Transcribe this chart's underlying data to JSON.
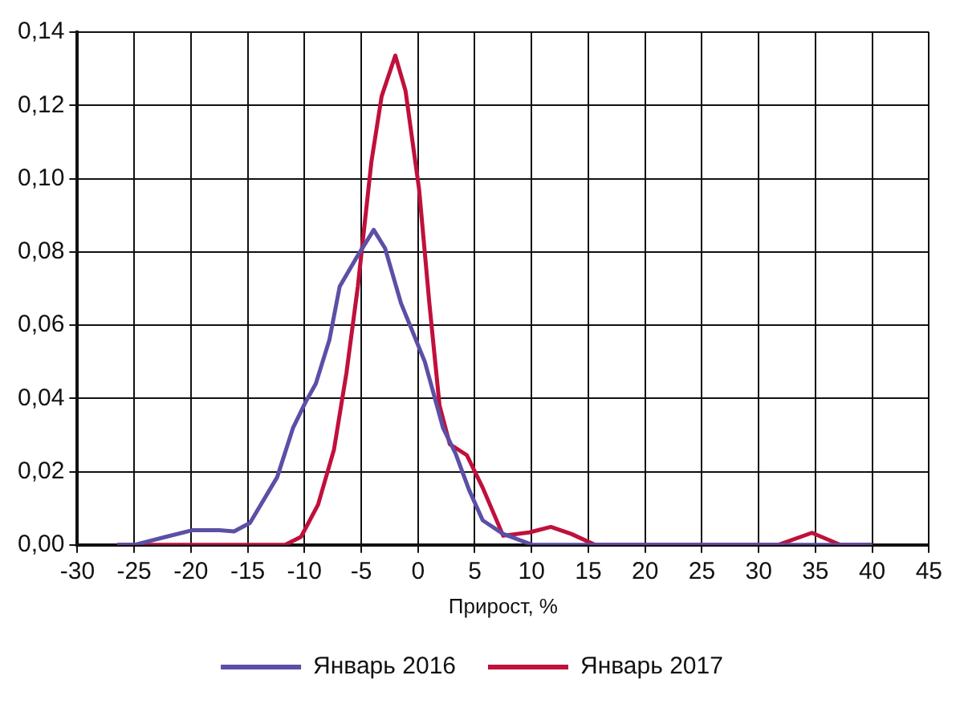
{
  "chart_data": {
    "type": "line",
    "xlabel": "Прирост, %",
    "xlim": [
      -30,
      45
    ],
    "xticks": [
      -30,
      -25,
      -20,
      -15,
      -10,
      -5,
      0,
      5,
      10,
      15,
      20,
      25,
      30,
      35,
      40,
      45
    ],
    "ylim": [
      0,
      0.14
    ],
    "yticks": [
      {
        "value": 0,
        "label": "0,00"
      },
      {
        "value": 0.02,
        "label": "0,02"
      },
      {
        "value": 0.04,
        "label": "0,04"
      },
      {
        "value": 0.06,
        "label": "0,06"
      },
      {
        "value": 0.08,
        "label": "0,08"
      },
      {
        "value": 0.1,
        "label": "0,10"
      },
      {
        "value": 0.12,
        "label": "0,12"
      },
      {
        "value": 0.14,
        "label": "0,14"
      }
    ],
    "grid": true,
    "legend": "bottom",
    "marker": "none",
    "line_style": "solid",
    "series": [
      {
        "name": "Январь 2016",
        "color": "#5b4fa6",
        "x": [
          -26.5,
          -25,
          -22.2,
          -19.9,
          -17.5,
          -16.2,
          -14.8,
          -12.4,
          -11,
          -9.9,
          -9,
          -7.8,
          -6.9,
          -5.5,
          -3.9,
          -2.9,
          -1.5,
          0.6,
          2.2,
          3.3,
          4.5,
          5.7,
          7.5,
          10.1,
          20,
          30,
          40
        ],
        "values": [
          0,
          0,
          0.0022,
          0.004,
          0.004,
          0.0037,
          0.006,
          0.0185,
          0.032,
          0.039,
          0.044,
          0.056,
          0.0705,
          0.078,
          0.086,
          0.081,
          0.066,
          0.05,
          0.032,
          0.025,
          0.015,
          0.0067,
          0.003,
          0,
          0,
          0,
          0
        ]
      },
      {
        "name": "Январь 2017",
        "color": "#c0103c",
        "x": [
          -26.5,
          -11.7,
          -10.3,
          -8.8,
          -7.4,
          -6.3,
          -5.3,
          -4.1,
          -3.2,
          -2,
          -1.1,
          0.1,
          1,
          1.9,
          2.8,
          4.3,
          5.7,
          7.5,
          9.8,
          11.7,
          13.5,
          15.6,
          31.7,
          34.7,
          37.2,
          40
        ],
        "values": [
          0,
          0,
          0.0022,
          0.011,
          0.026,
          0.047,
          0.0705,
          0.1047,
          0.1225,
          0.1336,
          0.124,
          0.097,
          0.066,
          0.038,
          0.0275,
          0.0245,
          0.0156,
          0.0025,
          0.0034,
          0.0049,
          0.003,
          0,
          0,
          0.0033,
          0,
          0
        ]
      }
    ]
  }
}
